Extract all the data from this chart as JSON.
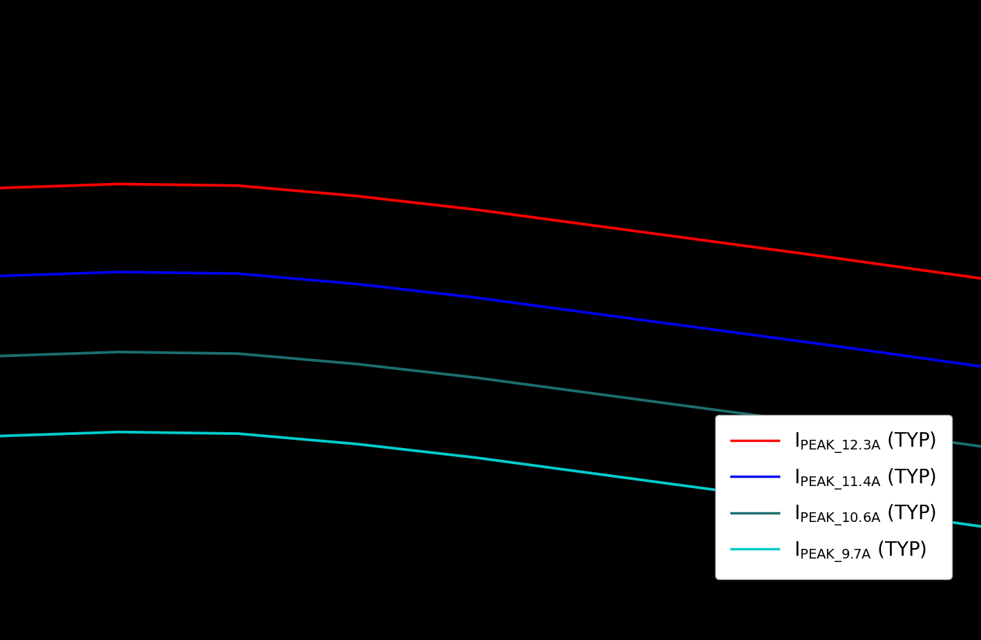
{
  "background_color": "#000000",
  "text_color": "#ffffff",
  "series": [
    {
      "label": "I_{PEAK\\_12.3A} (TYP)",
      "color": "#ff0000",
      "x": [
        -40,
        -20,
        0,
        20,
        40,
        60,
        80,
        100,
        125
      ],
      "y": [
        13.15,
        13.2,
        13.18,
        13.05,
        12.88,
        12.68,
        12.48,
        12.28,
        12.02
      ]
    },
    {
      "label": "I_{PEAK\\_11.4A} (TYP)",
      "color": "#0000ee",
      "x": [
        -40,
        -20,
        0,
        20,
        40,
        60,
        80,
        100,
        125
      ],
      "y": [
        12.05,
        12.1,
        12.08,
        11.95,
        11.78,
        11.58,
        11.38,
        11.18,
        10.92
      ]
    },
    {
      "label": "I_{PEAK\\_10.6A} (TYP)",
      "color": "#1c6e6e",
      "x": [
        -40,
        -20,
        0,
        20,
        40,
        60,
        80,
        100,
        125
      ],
      "y": [
        11.05,
        11.1,
        11.08,
        10.95,
        10.78,
        10.58,
        10.38,
        10.18,
        9.92
      ]
    },
    {
      "label": "I_{PEAK\\_9.7A} (TYP)",
      "color": "#00cccc",
      "x": [
        -40,
        -20,
        0,
        20,
        40,
        60,
        80,
        100,
        125
      ],
      "y": [
        10.05,
        10.1,
        10.08,
        9.95,
        9.78,
        9.58,
        9.38,
        9.18,
        8.92
      ]
    }
  ],
  "xlim": [
    -40,
    125
  ],
  "ylim": [
    7.5,
    15.5
  ],
  "legend_facecolor": "#ffffff",
  "legend_edgecolor": "#aaaaaa",
  "legend_text_color": "#000000",
  "line_width": 2.8,
  "legend_fontsize": 20
}
